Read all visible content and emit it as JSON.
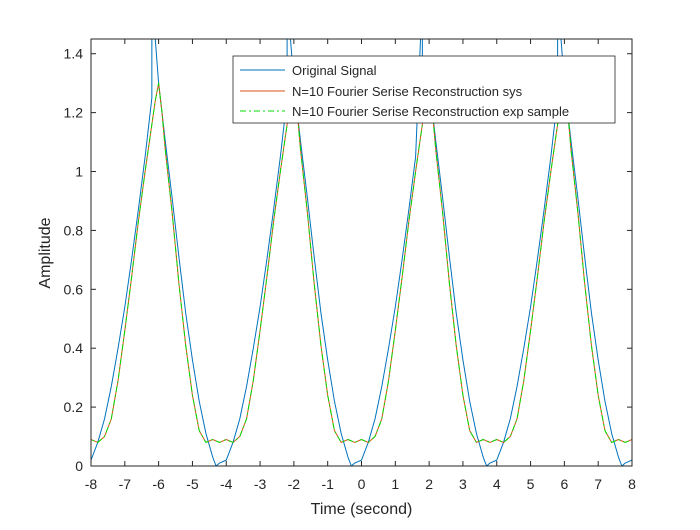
{
  "chart_data": {
    "type": "line",
    "title": "",
    "xlabel": "Time (second)",
    "ylabel": "Amplitude",
    "xlim": [
      -8,
      8
    ],
    "ylim": [
      0,
      1.45
    ],
    "xticks": [
      -8,
      -7,
      -6,
      -5,
      -4,
      -3,
      -2,
      -1,
      0,
      1,
      2,
      3,
      4,
      5,
      6,
      7,
      8
    ],
    "yticks": [
      0,
      0.2,
      0.4,
      0.6,
      0.8,
      1,
      1.2,
      1.4
    ],
    "ytick_labels": [
      "0",
      "0.2",
      "0.4",
      "0.6",
      "0.8",
      "1",
      "1.2",
      "1.4"
    ],
    "grid": false,
    "legend_position": "top-right",
    "period": 4,
    "series": [
      {
        "name": "Original Signal",
        "color": "#0072BD",
        "style": "solid",
        "x": [
          -2.2,
          -2.0,
          -1.8,
          -1.6,
          -1.4,
          -1.2,
          -1.0,
          -0.8,
          -0.6,
          -0.4,
          -0.3,
          -0.2,
          0.0,
          0.2,
          0.4,
          0.6,
          0.8,
          1.0,
          1.2,
          1.4,
          1.6,
          1.8
        ],
        "y": [
          1.6,
          1.3,
          1.1,
          0.91,
          0.71,
          0.52,
          0.36,
          0.22,
          0.11,
          0.03,
          0.0,
          0.01,
          0.02,
          0.08,
          0.16,
          0.27,
          0.4,
          0.54,
          0.7,
          0.87,
          1.05,
          1.25
        ]
      },
      {
        "name": "N=10 Fourier Serise Reconstruction sys",
        "color": "#D95319",
        "style": "solid",
        "x": [
          -2.0,
          -1.9,
          -1.8,
          -1.6,
          -1.4,
          -1.2,
          -1.0,
          -0.8,
          -0.6,
          -0.4,
          -0.2,
          0.0,
          0.2,
          0.4,
          0.6,
          0.8,
          1.0,
          1.2,
          1.4,
          1.6,
          1.8,
          1.9
        ],
        "y": [
          1.3,
          1.2,
          1.07,
          0.86,
          0.62,
          0.41,
          0.24,
          0.12,
          0.08,
          0.09,
          0.08,
          0.09,
          0.08,
          0.1,
          0.16,
          0.29,
          0.46,
          0.64,
          0.83,
          1.0,
          1.16,
          1.24
        ]
      },
      {
        "name": "N=10 Fourier Serise Reconstruction exp sample",
        "color": "#00DD00",
        "style": "dashdot",
        "x": [
          -2.0,
          -1.9,
          -1.8,
          -1.6,
          -1.4,
          -1.2,
          -1.0,
          -0.8,
          -0.6,
          -0.4,
          -0.2,
          0.0,
          0.2,
          0.4,
          0.6,
          0.8,
          1.0,
          1.2,
          1.4,
          1.6,
          1.8,
          1.9
        ],
        "y": [
          1.3,
          1.2,
          1.07,
          0.86,
          0.62,
          0.41,
          0.24,
          0.12,
          0.08,
          0.09,
          0.08,
          0.09,
          0.08,
          0.1,
          0.16,
          0.29,
          0.46,
          0.64,
          0.83,
          1.0,
          1.16,
          1.24
        ]
      }
    ]
  }
}
